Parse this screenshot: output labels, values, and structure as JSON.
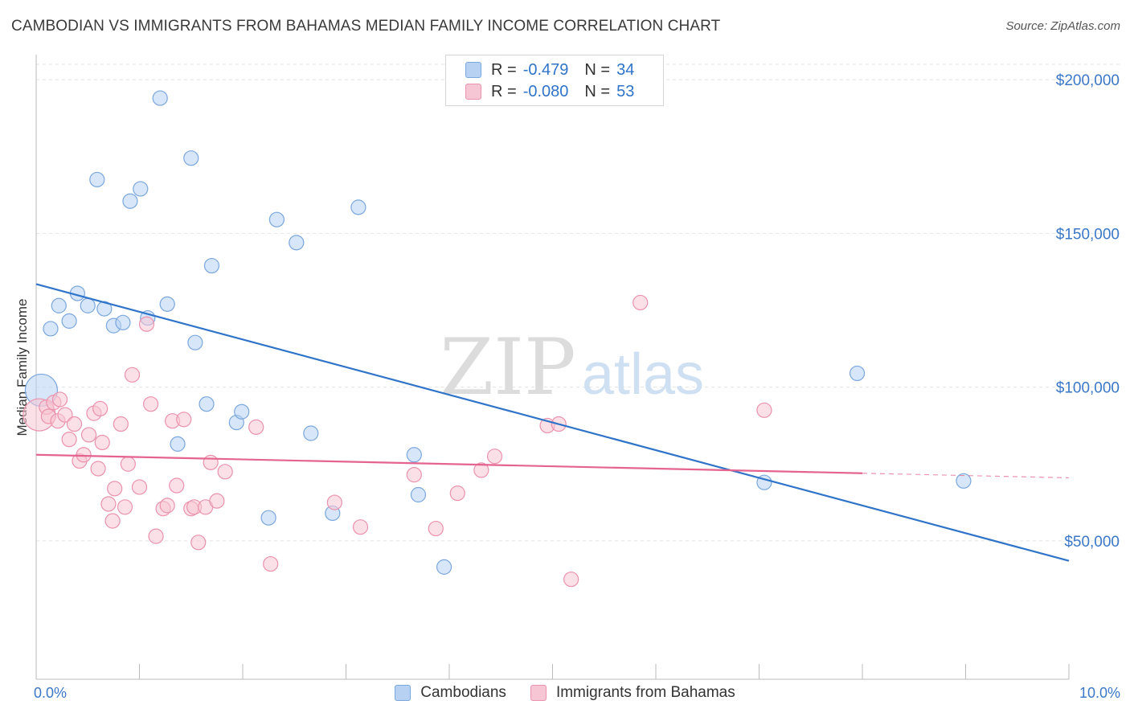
{
  "title": "CAMBODIAN VS IMMIGRANTS FROM BAHAMAS MEDIAN FAMILY INCOME CORRELATION CHART",
  "source": "Source: ZipAtlas.com",
  "watermark": {
    "zip": "ZIP",
    "atlas": "atlas"
  },
  "legend_stats": [
    {
      "r_label": "R =",
      "r_value": "-0.479",
      "n_label": "N =",
      "n_value": "34"
    },
    {
      "r_label": "R =",
      "r_value": "-0.080",
      "n_label": "N =",
      "n_value": "53"
    }
  ],
  "colors": {
    "blue_fill": "#b7d1f2",
    "blue_stroke": "#7aa7de",
    "blue_line": "#2f74c8",
    "pink_fill": "#f7c6d4",
    "pink_stroke": "#eb92ad",
    "pink_line": "#e4648f",
    "tick_label": "#3a78c7",
    "grid": "#e3e3e3"
  },
  "chart_data": {
    "type": "scatter",
    "xlabel": "",
    "ylabel": "Median Family Income",
    "x_tick_labels": [
      "0.0%",
      "10.0%"
    ],
    "y_ticks": [
      50000,
      100000,
      150000,
      200000
    ],
    "y_tick_labels": [
      "$50,000",
      "$100,000",
      "$150,000",
      "$200,000"
    ],
    "xlim": [
      0,
      10
    ],
    "ylim": [
      5000,
      205000
    ],
    "grid": true,
    "series": [
      {
        "name": "Cambodians",
        "color": "blue",
        "r": -0.479,
        "n": 34,
        "trend": {
          "x0": 0,
          "y0": 133500,
          "x1": 10,
          "y1": 43500,
          "dashed_from": null
        },
        "points": [
          [
            0.05,
            99000,
            "large"
          ],
          [
            0.14,
            119000
          ],
          [
            0.22,
            126500
          ],
          [
            0.32,
            121500
          ],
          [
            0.4,
            130500
          ],
          [
            0.5,
            126500
          ],
          [
            0.59,
            167500
          ],
          [
            0.66,
            125500
          ],
          [
            0.75,
            120000
          ],
          [
            0.84,
            121000
          ],
          [
            0.91,
            160500
          ],
          [
            1.01,
            164500
          ],
          [
            1.08,
            122500
          ],
          [
            1.2,
            194000
          ],
          [
            1.27,
            127000
          ],
          [
            1.37,
            81500
          ],
          [
            1.5,
            174500
          ],
          [
            1.54,
            114500
          ],
          [
            1.65,
            94500
          ],
          [
            1.7,
            139500
          ],
          [
            1.94,
            88500
          ],
          [
            1.99,
            92000
          ],
          [
            2.25,
            57500
          ],
          [
            2.33,
            154500
          ],
          [
            2.52,
            147000
          ],
          [
            2.66,
            85000
          ],
          [
            2.87,
            59000
          ],
          [
            3.12,
            158500
          ],
          [
            3.66,
            78000
          ],
          [
            3.7,
            65000
          ],
          [
            3.95,
            41500
          ],
          [
            7.05,
            69000
          ],
          [
            7.95,
            104500
          ],
          [
            8.98,
            69500
          ]
        ]
      },
      {
        "name": "Immigrants from Bahamas",
        "color": "pink",
        "r": -0.08,
        "n": 53,
        "trend": {
          "x0": 0,
          "y0": 78000,
          "x1": 10,
          "y1": 70500,
          "dashed_from": 8.0
        },
        "points": [
          [
            0.03,
            91000,
            "large"
          ],
          [
            0.1,
            93500
          ],
          [
            0.12,
            90500
          ],
          [
            0.17,
            95000
          ],
          [
            0.21,
            89000
          ],
          [
            0.23,
            96000
          ],
          [
            0.28,
            91000
          ],
          [
            0.32,
            83000
          ],
          [
            0.37,
            88000
          ],
          [
            0.42,
            76000
          ],
          [
            0.46,
            78000
          ],
          [
            0.51,
            84500
          ],
          [
            0.56,
            91500
          ],
          [
            0.6,
            73500
          ],
          [
            0.64,
            82000
          ],
          [
            0.7,
            62000
          ],
          [
            0.74,
            56500
          ],
          [
            0.76,
            67000
          ],
          [
            0.82,
            88000
          ],
          [
            0.86,
            61000
          ],
          [
            0.89,
            75000
          ],
          [
            0.93,
            104000
          ],
          [
            1.0,
            67500
          ],
          [
            1.07,
            120500
          ],
          [
            1.11,
            94500
          ],
          [
            1.16,
            51500
          ],
          [
            1.23,
            60500
          ],
          [
            1.27,
            61500
          ],
          [
            1.32,
            89000
          ],
          [
            1.36,
            68000
          ],
          [
            1.43,
            89500
          ],
          [
            1.5,
            60500
          ],
          [
            1.53,
            61000
          ],
          [
            1.57,
            49500
          ],
          [
            1.64,
            61000
          ],
          [
            1.69,
            75500
          ],
          [
            1.75,
            63000
          ],
          [
            1.83,
            72500
          ],
          [
            2.13,
            87000
          ],
          [
            2.27,
            42500
          ],
          [
            2.89,
            62500
          ],
          [
            3.14,
            54500
          ],
          [
            3.66,
            71500
          ],
          [
            3.87,
            54000
          ],
          [
            4.08,
            65500
          ],
          [
            4.31,
            73000
          ],
          [
            4.44,
            77500
          ],
          [
            4.95,
            87500
          ],
          [
            5.06,
            88000
          ],
          [
            5.18,
            37500
          ],
          [
            5.85,
            127500
          ],
          [
            7.05,
            92500
          ],
          [
            0.62,
            93000
          ]
        ]
      }
    ]
  }
}
